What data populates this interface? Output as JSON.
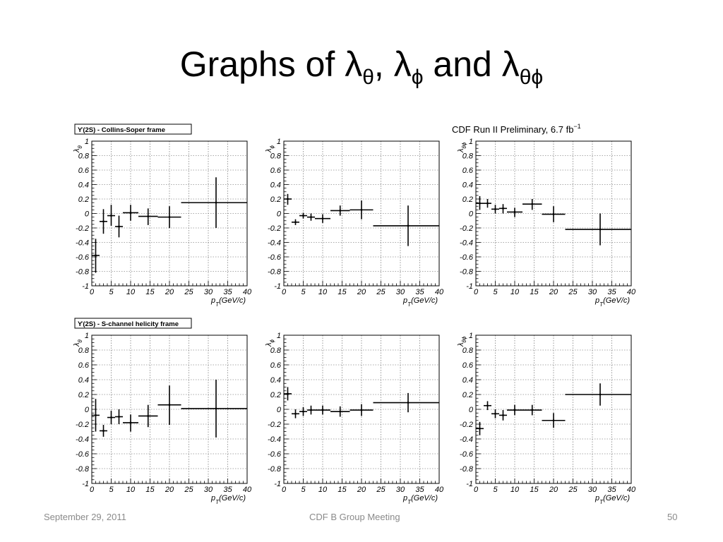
{
  "slide": {
    "title_prefix": "Graphs of λ",
    "sub1": "θ",
    "sep1": ", λ",
    "sub2": "ϕ",
    "sep2": " and λ",
    "sub3": "θϕ"
  },
  "footer": {
    "date": "September 29, 2011",
    "center": "CDF B Group Meeting",
    "page": "50"
  },
  "annotations": {
    "preliminary": "CDF Run II Preliminary, 6.7 fb",
    "preliminary_sup": "−1"
  },
  "axis_common": {
    "x_label": "p",
    "x_label_sub": "T",
    "x_unit": "(GeV/c)",
    "x_ticks": [
      0,
      5,
      10,
      15,
      20,
      25,
      30,
      35,
      40
    ],
    "y_ticks": [
      -1,
      -0.8,
      -0.6,
      -0.4,
      -0.2,
      0,
      0.2,
      0.4,
      0.6,
      0.8,
      1
    ],
    "xlim": [
      0,
      40
    ],
    "ylim": [
      -1,
      1
    ],
    "grid": true
  },
  "chart_data": [
    {
      "type": "scatter",
      "frame_label": "ϒ(2S) - Collins-Soper frame",
      "ylabel": "λ",
      "ylabel_sub": "θ",
      "points": [
        {
          "x": 1,
          "xlo": 0,
          "xhi": 2,
          "y": -0.58,
          "ylo": -0.82,
          "yhi": -0.35
        },
        {
          "x": 3,
          "xlo": 2,
          "xhi": 4,
          "y": -0.11,
          "ylo": -0.28,
          "yhi": 0.06
        },
        {
          "x": 5,
          "xlo": 4,
          "xhi": 6,
          "y": -0.03,
          "ylo": -0.17,
          "yhi": 0.12
        },
        {
          "x": 7,
          "xlo": 6,
          "xhi": 8,
          "y": -0.18,
          "ylo": -0.33,
          "yhi": -0.03
        },
        {
          "x": 10,
          "xlo": 8,
          "xhi": 12,
          "y": 0.01,
          "ylo": -0.1,
          "yhi": 0.12
        },
        {
          "x": 14.5,
          "xlo": 12,
          "xhi": 17,
          "y": -0.04,
          "ylo": -0.16,
          "yhi": 0.07
        },
        {
          "x": 20,
          "xlo": 17,
          "xhi": 23,
          "y": -0.05,
          "ylo": -0.2,
          "yhi": 0.1
        },
        {
          "x": 32,
          "xlo": 23,
          "xhi": 40,
          "y": 0.15,
          "ylo": -0.2,
          "yhi": 0.5
        }
      ]
    },
    {
      "type": "scatter",
      "ylabel": "λ",
      "ylabel_sub": "ϕ",
      "points": [
        {
          "x": 1,
          "xlo": 0,
          "xhi": 2,
          "y": 0.2,
          "ylo": 0.12,
          "yhi": 0.27
        },
        {
          "x": 3,
          "xlo": 2,
          "xhi": 4,
          "y": -0.12,
          "ylo": -0.16,
          "yhi": -0.08
        },
        {
          "x": 5,
          "xlo": 4,
          "xhi": 6,
          "y": -0.03,
          "ylo": -0.07,
          "yhi": 0.01
        },
        {
          "x": 7,
          "xlo": 6,
          "xhi": 8,
          "y": -0.05,
          "ylo": -0.1,
          "yhi": 0.0
        },
        {
          "x": 10,
          "xlo": 8,
          "xhi": 12,
          "y": -0.07,
          "ylo": -0.13,
          "yhi": -0.01
        },
        {
          "x": 14.5,
          "xlo": 12,
          "xhi": 17,
          "y": 0.04,
          "ylo": -0.03,
          "yhi": 0.11
        },
        {
          "x": 20,
          "xlo": 17,
          "xhi": 23,
          "y": 0.05,
          "ylo": -0.08,
          "yhi": 0.18
        },
        {
          "x": 32,
          "xlo": 23,
          "xhi": 40,
          "y": -0.17,
          "ylo": -0.45,
          "yhi": 0.11
        }
      ]
    },
    {
      "type": "scatter",
      "ylabel": "λ",
      "ylabel_sub": "θϕ",
      "points": [
        {
          "x": 1,
          "xlo": 0,
          "xhi": 2,
          "y": 0.14,
          "ylo": 0.05,
          "yhi": 0.24
        },
        {
          "x": 3,
          "xlo": 2,
          "xhi": 4,
          "y": 0.14,
          "ylo": 0.08,
          "yhi": 0.2
        },
        {
          "x": 5,
          "xlo": 4,
          "xhi": 6,
          "y": 0.06,
          "ylo": 0.0,
          "yhi": 0.12
        },
        {
          "x": 7,
          "xlo": 6,
          "xhi": 8,
          "y": 0.07,
          "ylo": 0.0,
          "yhi": 0.13
        },
        {
          "x": 10,
          "xlo": 8,
          "xhi": 12,
          "y": 0.02,
          "ylo": -0.05,
          "yhi": 0.08
        },
        {
          "x": 14.5,
          "xlo": 12,
          "xhi": 17,
          "y": 0.13,
          "ylo": 0.05,
          "yhi": 0.2
        },
        {
          "x": 20,
          "xlo": 17,
          "xhi": 23,
          "y": -0.01,
          "ylo": -0.12,
          "yhi": 0.1
        },
        {
          "x": 32,
          "xlo": 23,
          "xhi": 40,
          "y": -0.22,
          "ylo": -0.44,
          "yhi": 0.0
        }
      ]
    },
    {
      "type": "scatter",
      "frame_label": "ϒ(2S) - S-channel helicity frame",
      "ylabel": "λ",
      "ylabel_sub": "θ",
      "points": [
        {
          "x": 1,
          "xlo": 0,
          "xhi": 2,
          "y": -0.08,
          "ylo": -0.3,
          "yhi": 0.14
        },
        {
          "x": 3,
          "xlo": 2,
          "xhi": 4,
          "y": -0.29,
          "ylo": -0.37,
          "yhi": -0.21
        },
        {
          "x": 5,
          "xlo": 4,
          "xhi": 6,
          "y": -0.11,
          "ylo": -0.2,
          "yhi": -0.02
        },
        {
          "x": 7,
          "xlo": 6,
          "xhi": 8,
          "y": -0.1,
          "ylo": -0.2,
          "yhi": 0.0
        },
        {
          "x": 10,
          "xlo": 8,
          "xhi": 12,
          "y": -0.18,
          "ylo": -0.3,
          "yhi": -0.07
        },
        {
          "x": 14.5,
          "xlo": 12,
          "xhi": 17,
          "y": -0.09,
          "ylo": -0.24,
          "yhi": 0.06
        },
        {
          "x": 20,
          "xlo": 17,
          "xhi": 23,
          "y": 0.06,
          "ylo": -0.21,
          "yhi": 0.32
        },
        {
          "x": 32,
          "xlo": 23,
          "xhi": 40,
          "y": 0.01,
          "ylo": -0.38,
          "yhi": 0.4
        }
      ]
    },
    {
      "type": "scatter",
      "ylabel": "λ",
      "ylabel_sub": "ϕ",
      "points": [
        {
          "x": 1,
          "xlo": 0,
          "xhi": 2,
          "y": 0.21,
          "ylo": 0.12,
          "yhi": 0.3
        },
        {
          "x": 3,
          "xlo": 2,
          "xhi": 4,
          "y": -0.06,
          "ylo": -0.12,
          "yhi": 0.0
        },
        {
          "x": 5,
          "xlo": 4,
          "xhi": 6,
          "y": -0.03,
          "ylo": -0.09,
          "yhi": 0.03
        },
        {
          "x": 7,
          "xlo": 6,
          "xhi": 8,
          "y": -0.01,
          "ylo": -0.07,
          "yhi": 0.05
        },
        {
          "x": 10,
          "xlo": 8,
          "xhi": 12,
          "y": -0.01,
          "ylo": -0.07,
          "yhi": 0.05
        },
        {
          "x": 14.5,
          "xlo": 12,
          "xhi": 17,
          "y": -0.03,
          "ylo": -0.1,
          "yhi": 0.04
        },
        {
          "x": 20,
          "xlo": 17,
          "xhi": 23,
          "y": -0.01,
          "ylo": -0.09,
          "yhi": 0.07
        },
        {
          "x": 32,
          "xlo": 23,
          "xhi": 40,
          "y": 0.09,
          "ylo": -0.04,
          "yhi": 0.22
        }
      ]
    },
    {
      "type": "scatter",
      "ylabel": "λ",
      "ylabel_sub": "θϕ",
      "points": [
        {
          "x": 1,
          "xlo": 0,
          "xhi": 2,
          "y": -0.26,
          "ylo": -0.35,
          "yhi": -0.17
        },
        {
          "x": 3,
          "xlo": 2,
          "xhi": 4,
          "y": 0.05,
          "ylo": -0.01,
          "yhi": 0.11
        },
        {
          "x": 5,
          "xlo": 4,
          "xhi": 6,
          "y": -0.06,
          "ylo": -0.12,
          "yhi": 0.0
        },
        {
          "x": 7,
          "xlo": 6,
          "xhi": 8,
          "y": -0.08,
          "ylo": -0.15,
          "yhi": -0.01
        },
        {
          "x": 10,
          "xlo": 8,
          "xhi": 12,
          "y": -0.01,
          "ylo": -0.08,
          "yhi": 0.06
        },
        {
          "x": 14.5,
          "xlo": 12,
          "xhi": 17,
          "y": -0.01,
          "ylo": -0.08,
          "yhi": 0.06
        },
        {
          "x": 20,
          "xlo": 17,
          "xhi": 23,
          "y": -0.15,
          "ylo": -0.25,
          "yhi": -0.05
        },
        {
          "x": 32,
          "xlo": 23,
          "xhi": 40,
          "y": 0.2,
          "ylo": 0.05,
          "yhi": 0.35
        }
      ]
    }
  ]
}
